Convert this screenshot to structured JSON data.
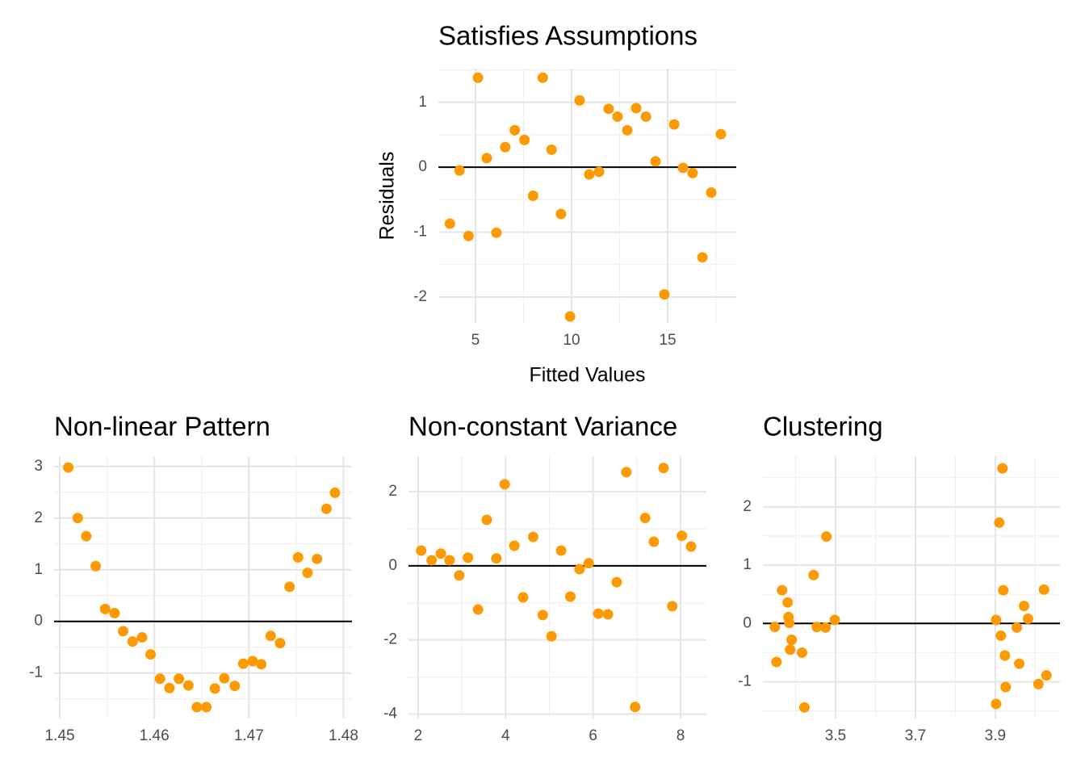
{
  "chart_data": [
    {
      "type": "scatter",
      "title": "Satisfies Assumptions",
      "x_label": "Fitted Values",
      "y_label": "Residuals",
      "color": "#ff9900",
      "hline": 0,
      "grid": true,
      "x": [
        3.67,
        4.17,
        4.64,
        5.13,
        5.59,
        6.09,
        6.55,
        7.05,
        7.55,
        8.0,
        8.5,
        8.96,
        9.45,
        9.92,
        10.42,
        10.92,
        11.43,
        11.93,
        12.39,
        12.9,
        13.36,
        13.87,
        14.37,
        14.83,
        15.34,
        15.8,
        16.3,
        16.81,
        17.27,
        17.77
      ],
      "values": [
        -0.87,
        -0.05,
        -1.06,
        1.38,
        0.14,
        -1.01,
        0.31,
        0.57,
        0.42,
        -0.44,
        1.38,
        0.27,
        -0.72,
        -2.3,
        1.03,
        -0.11,
        -0.07,
        0.9,
        0.78,
        0.57,
        0.91,
        0.78,
        0.09,
        -1.96,
        0.66,
        -0.01,
        -0.09,
        -1.39,
        -0.39,
        0.51
      ],
      "xlim": [
        3.07,
        18.57
      ],
      "ylim": [
        -2.4,
        1.52
      ],
      "xticks": [
        5,
        10,
        15
      ],
      "yticks": [
        -2,
        -1,
        0,
        1
      ],
      "xminor": [
        7.5,
        12.5,
        17.5
      ],
      "yminor": [
        -1.5,
        -0.5,
        0.5,
        1.5
      ]
    },
    {
      "type": "scatter",
      "title": "Non-linear Pattern",
      "color": "#ff9900",
      "hline": 0,
      "grid": true,
      "x": [
        1.4509,
        1.4519,
        1.4528,
        1.4538,
        1.4548,
        1.4558,
        1.4567,
        1.4577,
        1.4587,
        1.4596,
        1.4606,
        1.4616,
        1.4626,
        1.4636,
        1.4645,
        1.4655,
        1.4664,
        1.4674,
        1.4685,
        1.4694,
        1.4704,
        1.4713,
        1.4723,
        1.4733,
        1.4743,
        1.4752,
        1.4762,
        1.4772,
        1.4782,
        1.4791
      ],
      "values": [
        2.98,
        2.0,
        1.65,
        1.07,
        0.24,
        0.16,
        -0.19,
        -0.39,
        -0.31,
        -0.64,
        -1.11,
        -1.29,
        -1.11,
        -1.24,
        -1.66,
        -1.66,
        -1.3,
        -1.1,
        -1.25,
        -0.82,
        -0.77,
        -0.83,
        -0.28,
        -0.42,
        0.67,
        1.24,
        0.94,
        1.21,
        2.18,
        2.49
      ],
      "xlim": [
        1.4494,
        1.4809
      ],
      "ylim": [
        -1.88,
        3.2
      ],
      "xticks": [
        1.45,
        1.46,
        1.47,
        1.48
      ],
      "yticks": [
        -1,
        0,
        1,
        2,
        3
      ],
      "xminor": [
        1.455,
        1.465,
        1.475
      ],
      "yminor": [
        -1.5,
        -0.5,
        0.5,
        1.5,
        2.5
      ]
    },
    {
      "type": "scatter",
      "title": "Non-constant Variance",
      "color": "#ff9900",
      "hline": 0,
      "grid": true,
      "x": [
        2.07,
        2.31,
        2.52,
        2.72,
        2.94,
        3.14,
        3.37,
        3.57,
        3.79,
        3.98,
        4.2,
        4.4,
        4.63,
        4.85,
        5.05,
        5.27,
        5.48,
        5.69,
        5.9,
        6.12,
        6.34,
        6.54,
        6.76,
        6.96,
        7.19,
        7.39,
        7.61,
        7.81,
        8.03,
        8.24
      ],
      "values": [
        0.41,
        0.15,
        0.33,
        0.15,
        -0.26,
        0.22,
        -1.18,
        1.24,
        0.2,
        2.2,
        0.54,
        -0.85,
        0.78,
        -1.33,
        -1.9,
        0.41,
        -0.83,
        -0.09,
        0.07,
        -1.29,
        -1.31,
        -0.44,
        2.53,
        -3.81,
        1.29,
        0.65,
        2.64,
        -1.09,
        0.81,
        0.52
      ],
      "xlim": [
        1.78,
        8.59
      ],
      "ylim": [
        -4.12,
        2.96
      ],
      "xticks": [
        2,
        4,
        6,
        8
      ],
      "yticks": [
        -4,
        -2,
        0,
        2
      ],
      "xminor": [
        3,
        5,
        7
      ],
      "yminor": [
        -3,
        -1,
        1
      ]
    },
    {
      "type": "scatter",
      "title": "Clustering",
      "color": "#ff9900",
      "hline": 0,
      "grid": true,
      "x": [
        3.348,
        3.352,
        3.366,
        3.38,
        3.382,
        3.384,
        3.386,
        3.39,
        3.416,
        3.422,
        3.445,
        3.453,
        3.475,
        3.477,
        3.498,
        3.902,
        3.902,
        3.91,
        3.914,
        3.918,
        3.92,
        3.924,
        3.926,
        3.954,
        3.96,
        3.972,
        3.982,
        4.008,
        4.022,
        4.028
      ],
      "values": [
        -0.06,
        -0.66,
        0.57,
        0.36,
        0.11,
        0.01,
        -0.45,
        -0.28,
        -0.5,
        -1.44,
        0.83,
        -0.06,
        -0.07,
        1.49,
        0.06,
        0.06,
        -1.38,
        1.73,
        -0.21,
        2.66,
        0.57,
        -0.55,
        -1.09,
        -0.07,
        -0.69,
        0.3,
        0.08,
        -1.04,
        0.58,
        -0.89
      ],
      "xlim": [
        3.318,
        4.062
      ],
      "ylim": [
        -1.63,
        2.87
      ],
      "xticks": [
        3.5,
        3.7,
        3.9
      ],
      "yticks": [
        -1,
        0,
        1,
        2
      ],
      "xminor": [
        3.4,
        3.6,
        3.8,
        4.0
      ],
      "yminor": [
        -1.5,
        -0.5,
        0.5,
        1.5,
        2.5
      ]
    }
  ]
}
